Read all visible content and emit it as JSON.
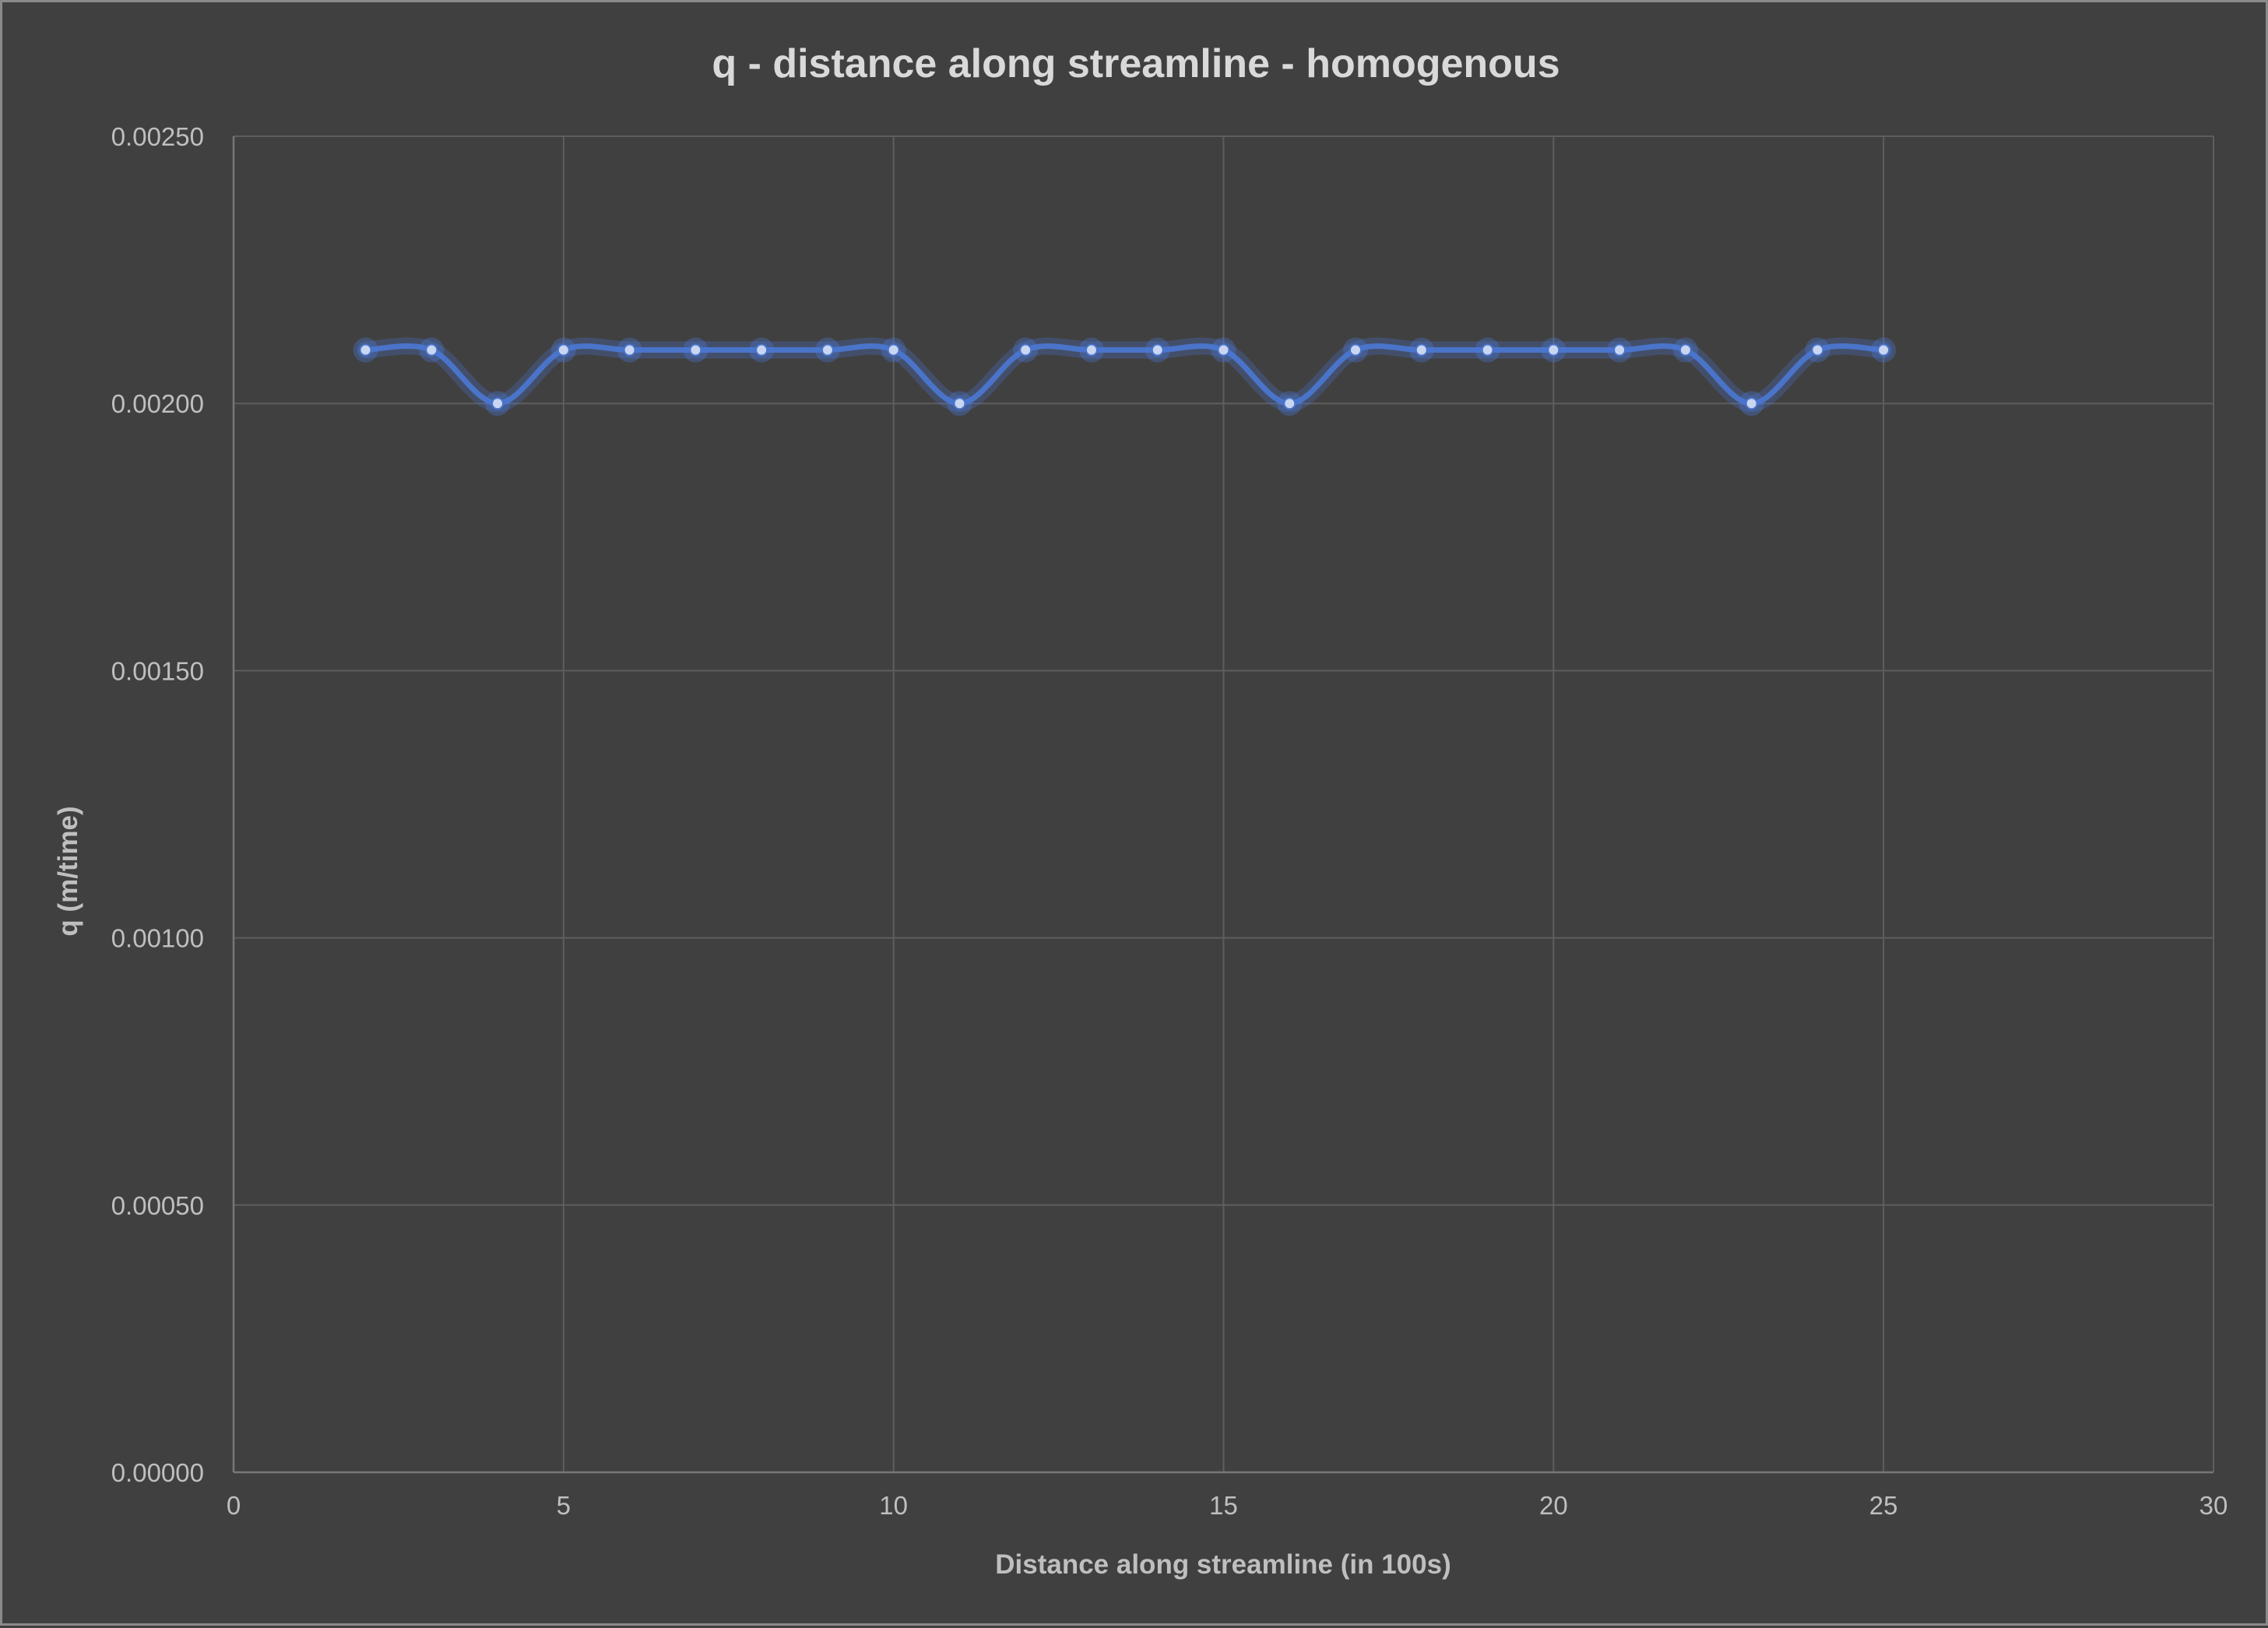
{
  "chart_data": {
    "type": "line",
    "title": "q - distance along streamline - homogenous",
    "xlabel": "Distance along streamline (in 100s)",
    "ylabel": "q (m/time)",
    "xlim": [
      0,
      30
    ],
    "ylim": [
      0,
      0.0025
    ],
    "x_ticks": [
      0,
      5,
      10,
      15,
      20,
      25,
      30
    ],
    "x_tick_labels": [
      "0",
      "5",
      "10",
      "15",
      "20",
      "25",
      "30"
    ],
    "y_ticks": [
      0,
      0.0005,
      0.001,
      0.0015,
      0.002,
      0.0025
    ],
    "y_tick_labels": [
      "0.00000",
      "0.00050",
      "0.00100",
      "0.00150",
      "0.00200",
      "0.00250"
    ],
    "grid": true,
    "smoothed": true,
    "series": [
      {
        "color": "#4a74c9",
        "x": [
          2,
          3,
          4,
          5,
          6,
          7,
          8,
          9,
          10,
          11,
          12,
          13,
          14,
          15,
          16,
          17,
          18,
          19,
          20,
          21,
          22,
          23,
          24,
          25
        ],
        "y": [
          0.0021,
          0.0021,
          0.002,
          0.0021,
          0.0021,
          0.0021,
          0.0021,
          0.0021,
          0.0021,
          0.002,
          0.0021,
          0.0021,
          0.0021,
          0.0021,
          0.002,
          0.0021,
          0.0021,
          0.0021,
          0.0021,
          0.0021,
          0.0021,
          0.002,
          0.0021,
          0.0021
        ]
      }
    ]
  }
}
